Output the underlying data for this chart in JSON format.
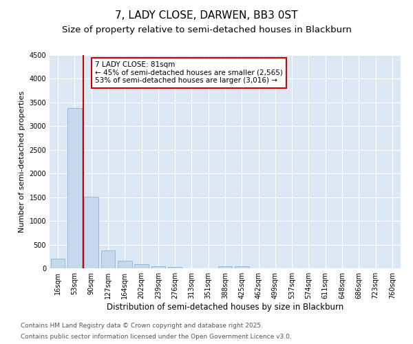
{
  "title": "7, LADY CLOSE, DARWEN, BB3 0ST",
  "subtitle": "Size of property relative to semi-detached houses in Blackburn",
  "xlabel": "Distribution of semi-detached houses by size in Blackburn",
  "ylabel": "Number of semi-detached properties",
  "categories": [
    "16sqm",
    "53sqm",
    "90sqm",
    "127sqm",
    "164sqm",
    "202sqm",
    "239sqm",
    "276sqm",
    "313sqm",
    "351sqm",
    "388sqm",
    "425sqm",
    "462sqm",
    "499sqm",
    "537sqm",
    "574sqm",
    "611sqm",
    "648sqm",
    "686sqm",
    "723sqm",
    "760sqm"
  ],
  "values": [
    200,
    3380,
    1510,
    380,
    155,
    80,
    45,
    30,
    0,
    0,
    50,
    50,
    0,
    0,
    0,
    0,
    0,
    0,
    0,
    0,
    0
  ],
  "bar_color": "#c5d8ee",
  "bar_edge_color": "#8ab4d4",
  "vline_color": "#cc0000",
  "annotation_line1": "7 LADY CLOSE: 81sqm",
  "annotation_line2": "← 45% of semi-detached houses are smaller (2,565)",
  "annotation_line3": "53% of semi-detached houses are larger (3,016) →",
  "ylim": [
    0,
    4500
  ],
  "yticks": [
    0,
    500,
    1000,
    1500,
    2000,
    2500,
    3000,
    3500,
    4000,
    4500
  ],
  "background_color": "#dce9f5",
  "footer_line1": "Contains HM Land Registry data © Crown copyright and database right 2025.",
  "footer_line2": "Contains public sector information licensed under the Open Government Licence v3.0.",
  "title_fontsize": 11,
  "subtitle_fontsize": 9.5,
  "xlabel_fontsize": 8.5,
  "ylabel_fontsize": 8,
  "tick_fontsize": 7,
  "annotation_fontsize": 7.5,
  "footer_fontsize": 6.5
}
